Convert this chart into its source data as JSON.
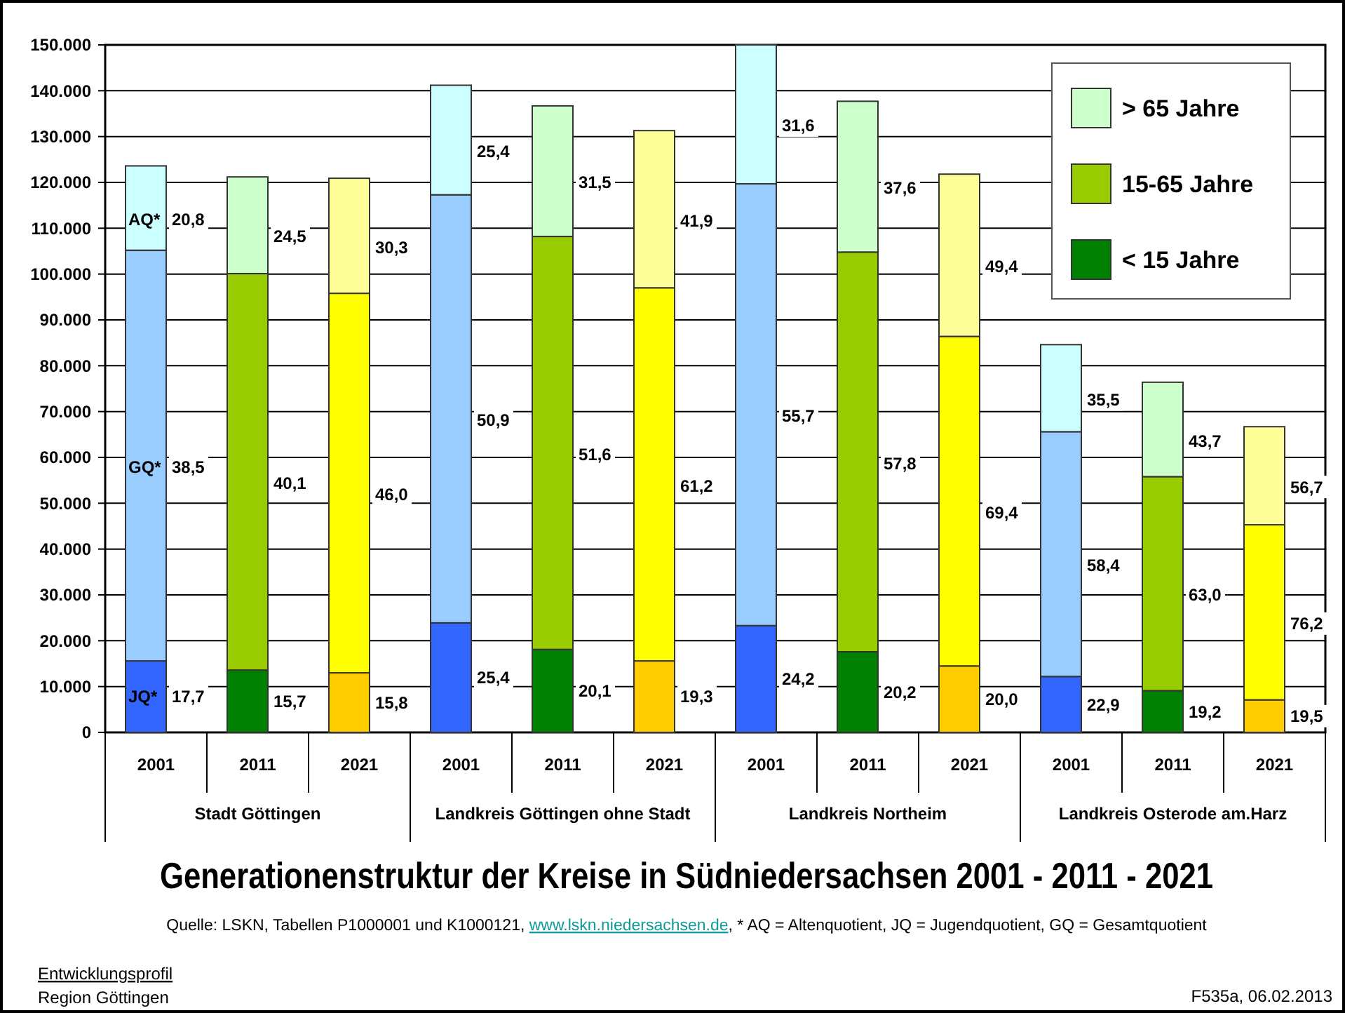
{
  "chart_data": {
    "type": "bar",
    "stacked": true,
    "title": "Generationenstruktur der Kreise in Südniedersachsen 2001 - 2011 - 2021",
    "categories": [
      "2001",
      "2011",
      "2021",
      "2001",
      "2011",
      "2021",
      "2001",
      "2011",
      "2021",
      "2001",
      "2011",
      "2021"
    ],
    "series": [
      {
        "name": "< 15 Jahre",
        "color": "#008000",
        "colors": [
          "#3366ff",
          "#008000",
          "#ffcc00",
          "#3366ff",
          "#008000",
          "#ffcc00",
          "#3366ff",
          "#008000",
          "#ffcc00",
          "#3366ff",
          "#008000",
          "#ffcc00"
        ],
        "values": [
          15600,
          13600,
          13000,
          23900,
          18100,
          15600,
          23300,
          17600,
          14500,
          12200,
          9100,
          7100
        ]
      },
      {
        "name": "15-65 Jahre",
        "color": "#99cc00",
        "colors": [
          "#99ccff",
          "#99cc00",
          "#ffff00",
          "#99ccff",
          "#99cc00",
          "#ffff00",
          "#99ccff",
          "#99cc00",
          "#ffff00",
          "#99ccff",
          "#99cc00",
          "#ffff00"
        ],
        "values": [
          89600,
          86500,
          82800,
          93400,
          90100,
          81400,
          96400,
          87200,
          71900,
          53400,
          46700,
          38200
        ]
      },
      {
        "name": "> 65 Jahre",
        "color": "#ccffcc",
        "colors": [
          "#ccffff",
          "#ccffcc",
          "#ffff99",
          "#ccffff",
          "#ccffcc",
          "#ffff99",
          "#ccffff",
          "#ccffcc",
          "#ffff99",
          "#ccffff",
          "#ccffcc",
          "#ffff99"
        ],
        "values": [
          18400,
          21100,
          25100,
          23900,
          28500,
          34300,
          30300,
          32900,
          35400,
          19000,
          20600,
          21400
        ]
      }
    ],
    "ylim": [
      0,
      150000
    ],
    "yticks": [
      0,
      {
        "value": 10000,
        "label": "10.000"
      },
      {
        "value": 20000,
        "label": "20.000"
      },
      {
        "value": 30000,
        "label": "30.000"
      },
      {
        "value": 40000,
        "label": "40.000"
      },
      {
        "value": 50000,
        "label": "50.000"
      },
      {
        "value": 60000,
        "label": "60.000"
      },
      {
        "value": 70000,
        "label": "70.000"
      },
      {
        "value": 80000,
        "label": "80.000"
      },
      {
        "value": 90000,
        "label": "90.000"
      },
      {
        "value": 100000,
        "label": "100.000"
      },
      {
        "value": 110000,
        "label": "110.000"
      },
      {
        "value": 120000,
        "label": "120.000"
      },
      {
        "value": 130000,
        "label": "130.000"
      },
      {
        "value": 140000,
        "label": "140.000"
      },
      {
        "value": 150000,
        "label": "150.000"
      }
    ],
    "grid": "y",
    "legend": "top right",
    "annotations": [
      "17,7",
      "15,7",
      "15,8",
      "25,4",
      "20,1",
      "19,3",
      "24,2",
      "20,2",
      "20,0",
      "22,9",
      "19,2",
      "19,5",
      "38,5",
      "40,1",
      "46,0",
      "50,9",
      "51,6",
      "61,2",
      "55,7",
      "57,8",
      "69,4",
      "58,4",
      "63,0",
      "76,2",
      "20,8",
      "24,5",
      "30,3",
      "25,4",
      "31,5",
      "41,9",
      "31,6",
      "37,6",
      "49,4",
      "35,5",
      "43,7",
      "56,7",
      "JQ*",
      "GQ*",
      "AQ*",
      "Stadt Göttingen",
      "Landkreis Göttingen ohne Stadt",
      "Landkreis Northeim",
      "Landkreis Osterode am.Harz",
      "Quelle: LSKN, Tabellen P1000001 und K1000121,",
      "www.lskn.niedersachsen.de",
      ",  * AQ = Altenquotient, JQ = Jugendquotient, GQ = Gesamtquotient",
      "Entwicklungsprofil",
      "Region Göttingen",
      "F535a,  06.02.2013"
    ]
  }
}
